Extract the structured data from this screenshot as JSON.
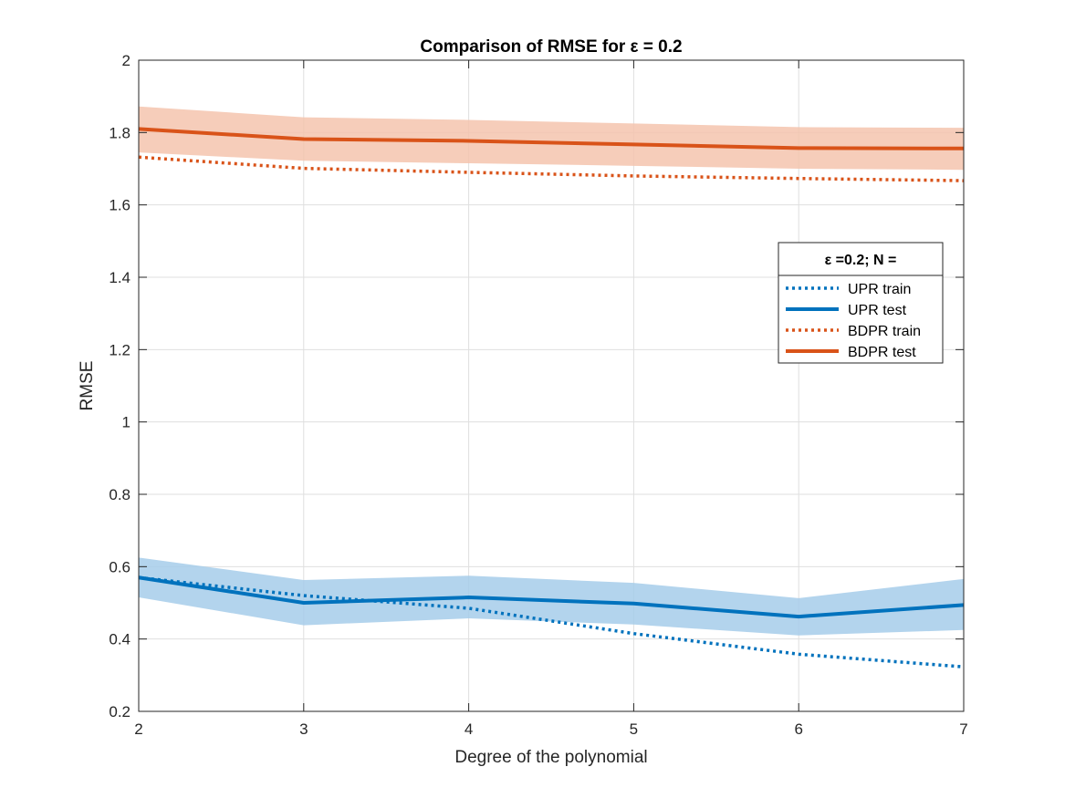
{
  "chart_data": {
    "type": "line",
    "title": "Comparison of RMSE for ε = 0.2",
    "xlabel": "Degree of the polynomial",
    "ylabel": "RMSE",
    "xlim": [
      2,
      7
    ],
    "ylim": [
      0.2,
      2
    ],
    "x": [
      2,
      3,
      4,
      5,
      6,
      7
    ],
    "xticks": [
      "2",
      "3",
      "4",
      "5",
      "6",
      "7"
    ],
    "yticks": [
      "0.2",
      "0.4",
      "0.6",
      "0.8",
      "1",
      "1.2",
      "1.4",
      "1.6",
      "1.8",
      "2"
    ],
    "grid": true,
    "legend": {
      "title": "ε =0.2; N =",
      "location": "right"
    },
    "series": [
      {
        "name": "UPR train",
        "style": "dotted",
        "color": "#0072BD",
        "values": [
          0.57,
          0.52,
          0.485,
          0.415,
          0.358,
          0.323
        ]
      },
      {
        "name": "UPR test",
        "style": "solid",
        "color": "#0072BD",
        "values": [
          0.57,
          0.5,
          0.515,
          0.498,
          0.462,
          0.494
        ],
        "band_lower": [
          0.515,
          0.438,
          0.457,
          0.44,
          0.41,
          0.425
        ],
        "band_upper": [
          0.625,
          0.563,
          0.575,
          0.555,
          0.513,
          0.566
        ],
        "band_color": "#A6CDEA"
      },
      {
        "name": "BDPR train",
        "style": "dotted",
        "color": "#D95319",
        "values": [
          1.732,
          1.701,
          1.69,
          1.68,
          1.673,
          1.667
        ]
      },
      {
        "name": "BDPR test",
        "style": "solid",
        "color": "#D95319",
        "values": [
          1.81,
          1.782,
          1.777,
          1.767,
          1.757,
          1.756
        ],
        "band_lower": [
          1.745,
          1.722,
          1.715,
          1.708,
          1.7,
          1.697
        ],
        "band_upper": [
          1.872,
          1.842,
          1.835,
          1.825,
          1.815,
          1.813
        ],
        "band_color": "#F4C4AE"
      }
    ]
  }
}
